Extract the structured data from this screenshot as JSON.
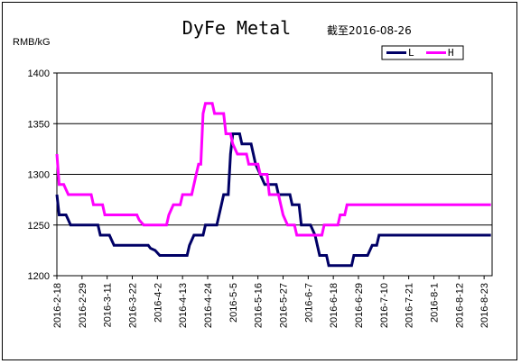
{
  "chart_data": {
    "type": "line",
    "title": "DyFe Metal",
    "subtitle": "截至2016-08-26",
    "ylabel": "RMB/kG",
    "xlabel": "",
    "ylim": [
      1200,
      1400
    ],
    "yticks": [
      1200,
      1250,
      1300,
      1350,
      1400
    ],
    "grid": "horizontal",
    "legend_position": "top-right",
    "x_range": [
      "2016-02-18",
      "2016-08-26"
    ],
    "xticks": [
      "2016-2-18",
      "2016-2-29",
      "2016-3-11",
      "2016-3-22",
      "2016-4-2",
      "2016-4-13",
      "2016-4-24",
      "2016-5-5",
      "2016-5-16",
      "2016-5-27",
      "2016-6-7",
      "2016-6-18",
      "2016-6-29",
      "2016-7-10",
      "2016-7-21",
      "2016-8-1",
      "2016-8-12",
      "2016-8-23"
    ],
    "series": [
      {
        "name": "L",
        "color": "#000066",
        "points": [
          [
            "2016-02-18",
            1280
          ],
          [
            "2016-02-19",
            1260
          ],
          [
            "2016-02-21",
            1260
          ],
          [
            "2016-02-22",
            1260
          ],
          [
            "2016-02-23",
            1255
          ],
          [
            "2016-02-24",
            1250
          ],
          [
            "2016-03-07",
            1250
          ],
          [
            "2016-03-08",
            1240
          ],
          [
            "2016-03-12",
            1240
          ],
          [
            "2016-03-13",
            1235
          ],
          [
            "2016-03-14",
            1230
          ],
          [
            "2016-03-29",
            1230
          ],
          [
            "2016-03-30",
            1227
          ],
          [
            "2016-04-01",
            1225
          ],
          [
            "2016-04-03",
            1220
          ],
          [
            "2016-04-15",
            1220
          ],
          [
            "2016-04-16",
            1230
          ],
          [
            "2016-04-18",
            1240
          ],
          [
            "2016-04-22",
            1240
          ],
          [
            "2016-04-23",
            1250
          ],
          [
            "2016-04-28",
            1250
          ],
          [
            "2016-04-30",
            1270
          ],
          [
            "2016-05-01",
            1280
          ],
          [
            "2016-05-03",
            1280
          ],
          [
            "2016-05-04",
            1320
          ],
          [
            "2016-05-05",
            1340
          ],
          [
            "2016-05-08",
            1340
          ],
          [
            "2016-05-09",
            1330
          ],
          [
            "2016-05-13",
            1330
          ],
          [
            "2016-05-15",
            1310
          ],
          [
            "2016-05-17",
            1300
          ],
          [
            "2016-05-19",
            1290
          ],
          [
            "2016-05-24",
            1290
          ],
          [
            "2016-05-25",
            1280
          ],
          [
            "2016-05-30",
            1280
          ],
          [
            "2016-05-31",
            1270
          ],
          [
            "2016-06-03",
            1270
          ],
          [
            "2016-06-04",
            1250
          ],
          [
            "2016-06-08",
            1250
          ],
          [
            "2016-06-10",
            1240
          ],
          [
            "2016-06-12",
            1220
          ],
          [
            "2016-06-15",
            1220
          ],
          [
            "2016-06-16",
            1210
          ],
          [
            "2016-06-26",
            1210
          ],
          [
            "2016-06-27",
            1220
          ],
          [
            "2016-07-03",
            1220
          ],
          [
            "2016-07-05",
            1230
          ],
          [
            "2016-07-07",
            1230
          ],
          [
            "2016-07-08",
            1240
          ],
          [
            "2016-08-26",
            1240
          ]
        ]
      },
      {
        "name": "H",
        "color": "#ff00ff",
        "points": [
          [
            "2016-02-18",
            1320
          ],
          [
            "2016-02-19",
            1290
          ],
          [
            "2016-02-21",
            1290
          ],
          [
            "2016-02-22",
            1285
          ],
          [
            "2016-02-23",
            1280
          ],
          [
            "2016-03-04",
            1280
          ],
          [
            "2016-03-05",
            1270
          ],
          [
            "2016-03-09",
            1270
          ],
          [
            "2016-03-10",
            1260
          ],
          [
            "2016-03-24",
            1260
          ],
          [
            "2016-03-25",
            1255
          ],
          [
            "2016-03-27",
            1250
          ],
          [
            "2016-04-06",
            1250
          ],
          [
            "2016-04-07",
            1260
          ],
          [
            "2016-04-09",
            1270
          ],
          [
            "2016-04-12",
            1270
          ],
          [
            "2016-04-13",
            1280
          ],
          [
            "2016-04-17",
            1280
          ],
          [
            "2016-04-19",
            1300
          ],
          [
            "2016-04-20",
            1310
          ],
          [
            "2016-04-21",
            1310
          ],
          [
            "2016-04-22",
            1360
          ],
          [
            "2016-04-23",
            1370
          ],
          [
            "2016-04-26",
            1370
          ],
          [
            "2016-04-27",
            1360
          ],
          [
            "2016-05-01",
            1360
          ],
          [
            "2016-05-02",
            1340
          ],
          [
            "2016-05-04",
            1340
          ],
          [
            "2016-05-05",
            1330
          ],
          [
            "2016-05-07",
            1320
          ],
          [
            "2016-05-11",
            1320
          ],
          [
            "2016-05-12",
            1310
          ],
          [
            "2016-05-16",
            1310
          ],
          [
            "2016-05-17",
            1300
          ],
          [
            "2016-05-20",
            1300
          ],
          [
            "2016-05-21",
            1280
          ],
          [
            "2016-05-25",
            1280
          ],
          [
            "2016-05-27",
            1260
          ],
          [
            "2016-05-29",
            1250
          ],
          [
            "2016-06-01",
            1250
          ],
          [
            "2016-06-02",
            1240
          ],
          [
            "2016-06-13",
            1240
          ],
          [
            "2016-06-14",
            1250
          ],
          [
            "2016-06-20",
            1250
          ],
          [
            "2016-06-21",
            1260
          ],
          [
            "2016-06-23",
            1260
          ],
          [
            "2016-06-24",
            1270
          ],
          [
            "2016-08-26",
            1270
          ]
        ]
      }
    ]
  }
}
